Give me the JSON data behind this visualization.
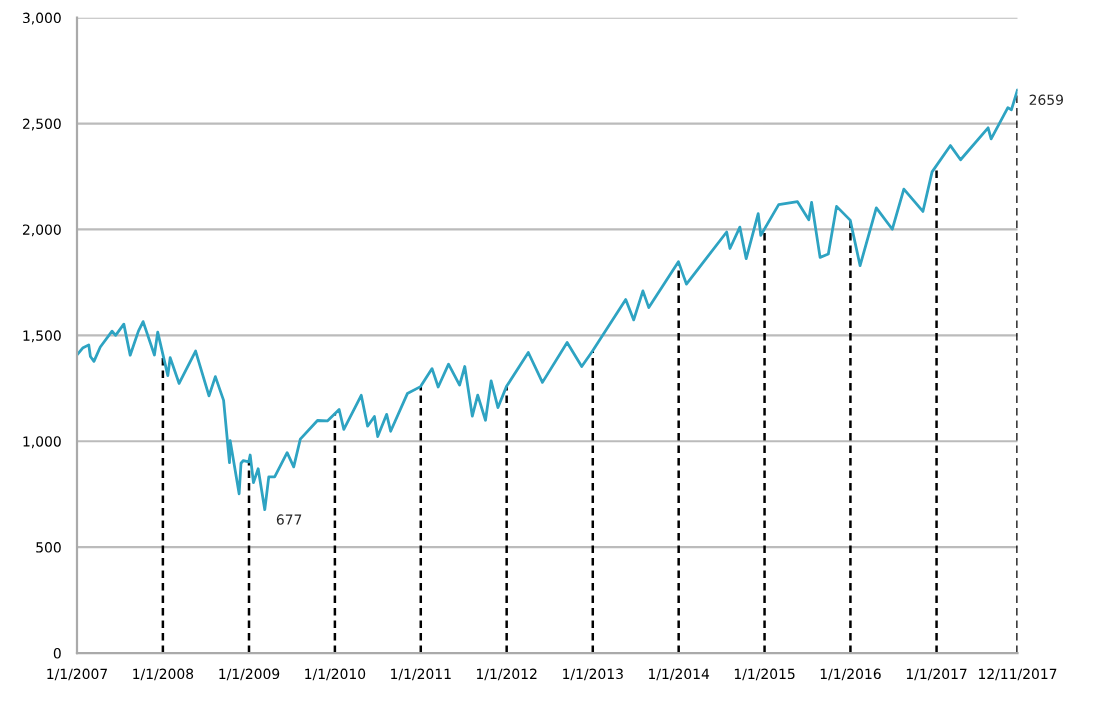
{
  "chart_data": {
    "type": "line",
    "x": [
      "2007-01-03",
      "2007-01-25",
      "2007-02-20",
      "2007-02-27",
      "2007-03-14",
      "2007-04-10",
      "2007-05-30",
      "2007-06-14",
      "2007-07-19",
      "2007-08-15",
      "2007-09-19",
      "2007-10-09",
      "2007-11-26",
      "2007-12-10",
      "2008-01-22",
      "2008-02-01",
      "2008-03-10",
      "2008-05-19",
      "2008-07-15",
      "2008-08-11",
      "2008-09-15",
      "2008-10-10",
      "2008-10-13",
      "2008-11-20",
      "2008-11-28",
      "2008-12-08",
      "2008-12-31",
      "2009-01-06",
      "2009-01-20",
      "2009-02-09",
      "2009-03-09",
      "2009-03-26",
      "2009-04-20",
      "2009-06-12",
      "2009-07-10",
      "2009-08-07",
      "2009-10-19",
      "2009-11-30",
      "2010-01-19",
      "2010-02-08",
      "2010-04-23",
      "2010-05-20",
      "2010-06-18",
      "2010-07-02",
      "2010-08-09",
      "2010-08-26",
      "2010-11-05",
      "2010-12-31",
      "2011-02-18",
      "2011-03-16",
      "2011-04-29",
      "2011-06-15",
      "2011-07-07",
      "2011-08-08",
      "2011-08-31",
      "2011-10-03",
      "2011-10-27",
      "2011-11-25",
      "2011-12-31",
      "2012-04-02",
      "2012-06-01",
      "2012-09-14",
      "2012-11-15",
      "2012-12-31",
      "2013-05-21",
      "2013-06-24",
      "2013-08-02",
      "2013-08-27",
      "2013-12-31",
      "2014-02-03",
      "2014-07-24",
      "2014-08-07",
      "2014-09-18",
      "2014-10-15",
      "2014-12-05",
      "2014-12-16",
      "2015-03-02",
      "2015-05-21",
      "2015-07-08",
      "2015-07-20",
      "2015-08-25",
      "2015-09-29",
      "2015-11-03",
      "2015-12-31",
      "2016-02-11",
      "2016-04-20",
      "2016-06-27",
      "2016-08-15",
      "2016-11-04",
      "2016-12-13",
      "2017-03-01",
      "2017-04-13",
      "2017-08-08",
      "2017-08-21",
      "2017-10-31",
      "2017-11-15",
      "2017-12-11"
    ],
    "series": [
      {
        "color": "#2ea3c2",
        "values": [
          1410,
          1440,
          1455,
          1400,
          1377,
          1445,
          1520,
          1500,
          1553,
          1406,
          1520,
          1565,
          1407,
          1515,
          1310,
          1395,
          1273,
          1426,
          1214,
          1305,
          1193,
          899,
          1003,
          752,
          896,
          909,
          903,
          935,
          805,
          870,
          677,
          832,
          832,
          946,
          879,
          1010,
          1098,
          1096,
          1150,
          1056,
          1217,
          1071,
          1117,
          1022,
          1127,
          1047,
          1225,
          1258,
          1343,
          1256,
          1364,
          1265,
          1353,
          1119,
          1218,
          1099,
          1285,
          1159,
          1258,
          1419,
          1278,
          1466,
          1353,
          1426,
          1669,
          1573,
          1710,
          1631,
          1848,
          1742,
          1988,
          1910,
          2011,
          1862,
          2075,
          1972,
          2117,
          2131,
          2046,
          2128,
          1868,
          1884,
          2109,
          2044,
          1829,
          2102,
          2001,
          2190,
          2085,
          2272,
          2396,
          2329,
          2480,
          2428,
          2575,
          2565,
          2659
        ]
      }
    ],
    "xlim": [
      "2007-01-01",
      "2017-12-11"
    ],
    "xticks": [
      {
        "value": "2007-01-01",
        "label": "1/1/2007"
      },
      {
        "value": "2008-01-01",
        "label": "1/1/2008"
      },
      {
        "value": "2009-01-01",
        "label": "1/1/2009"
      },
      {
        "value": "2010-01-01",
        "label": "1/1/2010"
      },
      {
        "value": "2011-01-01",
        "label": "1/1/2011"
      },
      {
        "value": "2012-01-01",
        "label": "1/1/2012"
      },
      {
        "value": "2013-01-01",
        "label": "1/1/2013"
      },
      {
        "value": "2014-01-01",
        "label": "1/1/2014"
      },
      {
        "value": "2015-01-01",
        "label": "1/1/2015"
      },
      {
        "value": "2016-01-01",
        "label": "1/1/2016"
      },
      {
        "value": "2017-01-01",
        "label": "1/1/2017"
      },
      {
        "value": "2017-12-11",
        "label": "12/11/2017"
      }
    ],
    "ylim": [
      0,
      3000
    ],
    "yticks": [
      0,
      {
        "value": 500,
        "label": "500"
      },
      {
        "value": 1000,
        "label": "1,000"
      },
      {
        "value": 1500,
        "label": "1,500"
      },
      {
        "value": 2000,
        "label": "2,000"
      },
      {
        "value": 2500,
        "label": "2,500"
      },
      {
        "value": 3000,
        "label": "3,000"
      }
    ],
    "grid": "y",
    "ref_lines": [
      {
        "axis": "x",
        "value": "2008-01-01",
        "color": "#000000",
        "line_style": "dashed"
      },
      {
        "axis": "x",
        "value": "2009-01-01",
        "color": "#000000",
        "line_style": "dashed"
      },
      {
        "axis": "x",
        "value": "2010-01-01",
        "color": "#000000",
        "line_style": "dashed"
      },
      {
        "axis": "x",
        "value": "2011-01-01",
        "color": "#000000",
        "line_style": "dashed"
      },
      {
        "axis": "x",
        "value": "2012-01-01",
        "color": "#000000",
        "line_style": "dashed"
      },
      {
        "axis": "x",
        "value": "2013-01-01",
        "color": "#000000",
        "line_style": "dashed"
      },
      {
        "axis": "x",
        "value": "2014-01-01",
        "color": "#000000",
        "line_style": "dashed"
      },
      {
        "axis": "x",
        "value": "2015-01-01",
        "color": "#000000",
        "line_style": "dashed"
      },
      {
        "axis": "x",
        "value": "2016-01-01",
        "color": "#000000",
        "line_style": "dashed"
      },
      {
        "axis": "x",
        "value": "2017-01-01",
        "color": "#000000",
        "line_style": "dashed"
      },
      {
        "axis": "x",
        "value": "2017-12-11",
        "color": "#000000",
        "line_style": "dashed"
      }
    ],
    "annotations": [
      {
        "text": "677",
        "x": "2009-03-09",
        "y": 677
      },
      {
        "text": "2659",
        "x": "2017-12-11",
        "y": 2659
      }
    ]
  }
}
